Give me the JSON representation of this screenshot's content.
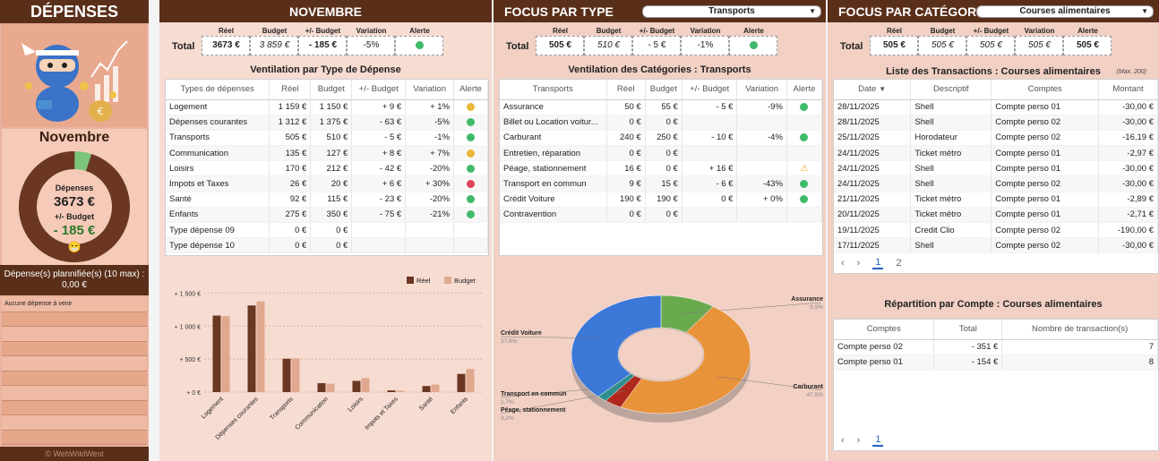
{
  "left": {
    "title": "DÉPENSES",
    "month": "Novembre",
    "donut_label": "Dépenses",
    "donut_value": "3673 €",
    "budget_label": "+/- Budget",
    "budget_value": "- 185 €",
    "emoji": "😁",
    "planned_title": "Dépense(s) plannifiée(s) (10 max) :",
    "planned_total": "0,00 €",
    "planned_first": "Aucune dépense à venir",
    "footer": "© WebWildWest",
    "spent_share": 0.95,
    "colors": {
      "spent": "#6b3722",
      "remaining": "#7cc47a"
    }
  },
  "nov": {
    "title": "NOVEMBRE",
    "total_label": "Total",
    "headers": [
      "Réel",
      "Budget",
      "+/- Budget",
      "Variation",
      "Alerte"
    ],
    "summary": [
      "3673 €",
      "3 859 €",
      "- 185 €",
      "-5%"
    ],
    "summary_alert": "green",
    "table_title": "Ventilation par Type de Dépense",
    "columns": [
      "Types de dépenses",
      "Réel",
      "Budget",
      "+/- Budget",
      "Variation",
      "Alerte"
    ],
    "rows": [
      [
        "Logement",
        "1 159 €",
        "1 150 €",
        "+ 9 €",
        "+ 1%",
        "yellow"
      ],
      [
        "Dépenses courantes",
        "1 312 €",
        "1 375 €",
        "- 63 €",
        "-5%",
        "green"
      ],
      [
        "Transports",
        "505 €",
        "510 €",
        "- 5 €",
        "-1%",
        "green"
      ],
      [
        "Communication",
        "135 €",
        "127 €",
        "+ 8 €",
        "+ 7%",
        "yellow"
      ],
      [
        "Loisirs",
        "170 €",
        "212 €",
        "- 42 €",
        "-20%",
        "green"
      ],
      [
        "Impots et Taxes",
        "26 €",
        "20 €",
        "+ 6 €",
        "+ 30%",
        "red"
      ],
      [
        "Santé",
        "92 €",
        "115 €",
        "- 23 €",
        "-20%",
        "green"
      ],
      [
        "Enfants",
        "275 €",
        "350 €",
        "- 75 €",
        "-21%",
        "green"
      ],
      [
        "Type dépense 09",
        "0 €",
        "0 €",
        "",
        "",
        ""
      ],
      [
        "Type dépense 10",
        "0 €",
        "0 €",
        "",
        "",
        ""
      ]
    ]
  },
  "chart_data": [
    {
      "type": "bar",
      "categories": [
        "Logement",
        "Dépenses courantes",
        "Transports",
        "Communication",
        "Loisirs",
        "Impots et Taxes",
        "Santé",
        "Enfants"
      ],
      "series": [
        {
          "name": "Réel",
          "values": [
            1159,
            1312,
            505,
            135,
            170,
            26,
            92,
            275
          ],
          "color": "#6b3722"
        },
        {
          "name": "Budget",
          "values": [
            1150,
            1375,
            510,
            127,
            212,
            20,
            115,
            350
          ],
          "color": "#dfa88f"
        }
      ],
      "yticks": [
        "+ 0 €",
        "+ 500 €",
        "+ 1 000 €",
        "+ 1 500 €"
      ],
      "ytick_values": [
        0,
        500,
        1000,
        1500
      ],
      "ylim": [
        0,
        1600
      ],
      "legend": "top-right"
    },
    {
      "type": "pie",
      "categories": [
        "Assurance",
        "Carburant",
        "Péage, stationnement",
        "Transport en commun",
        "Crédit Voiture"
      ],
      "values": [
        50,
        240,
        16,
        9,
        190
      ],
      "percent_labels": [
        "9,9%",
        "47,5%",
        "3,2%",
        "1,7%",
        "37,6%"
      ],
      "colors": [
        "#6aaa4e",
        "#e8923a",
        "#b0271c",
        "#2f8f8c",
        "#3c78d8"
      ]
    }
  ],
  "type_focus": {
    "title": "FOCUS PAR TYPE",
    "selected": "Transports",
    "total_label": "Total",
    "headers": [
      "Réel",
      "Budget",
      "+/- Budget",
      "Variation",
      "Alerte"
    ],
    "summary": [
      "505 €",
      "510 €",
      "- 5 €",
      "-1%"
    ],
    "summary_alert": "green",
    "table_title": "Ventilation des Catégories : Transports",
    "columns": [
      "Transports",
      "Réel",
      "Budget",
      "+/- Budget",
      "Variation",
      "Alerte"
    ],
    "rows": [
      [
        "Assurance",
        "50 €",
        "55 €",
        "- 5 €",
        "-9%",
        "green"
      ],
      [
        "Billet ou Location voitur...",
        "0 €",
        "0 €",
        "",
        "",
        ""
      ],
      [
        "Carburant",
        "240 €",
        "250 €",
        "- 10 €",
        "-4%",
        "green"
      ],
      [
        "Entretien, réparation",
        "0 €",
        "0 €",
        "",
        "",
        ""
      ],
      [
        "Péage, stationnement",
        "16 €",
        "0 €",
        "+ 16 €",
        "",
        "warn"
      ],
      [
        "Transport en commun",
        "9 €",
        "15 €",
        "- 6 €",
        "-43%",
        "green"
      ],
      [
        "Crédit Voiture",
        "190 €",
        "190 €",
        "0 €",
        "+ 0%",
        "green"
      ],
      [
        "Contravention",
        "0 €",
        "0 €",
        "",
        "",
        ""
      ]
    ]
  },
  "cat_focus": {
    "title": "FOCUS PAR CATÉGORIE",
    "selected": "Courses alimentaires",
    "total_label": "Total",
    "headers": [
      "Réel",
      "Budget",
      "+/- Budget",
      "Variation",
      "Alerte"
    ],
    "summary": [
      "505 €",
      "505 €",
      "505 €",
      "505 €",
      "505 €"
    ],
    "tx_title": "Liste des Transactions : Courses alimentaires",
    "tx_max": "(Max. 200)",
    "tx_columns": [
      "Date",
      "Descriptif",
      "Comptes",
      "Montant"
    ],
    "transactions": [
      [
        "28/11/2025",
        "Shell",
        "Compte perso 01",
        "-30,00 €"
      ],
      [
        "28/11/2025",
        "Shell",
        "Compte perso 02",
        "-30,00 €"
      ],
      [
        "25/11/2025",
        "Horodateur",
        "Compte perso 02",
        "-16,19 €"
      ],
      [
        "24/11/2025",
        "Ticket métro",
        "Compte perso 01",
        "-2,97 €"
      ],
      [
        "24/11/2025",
        "Shell",
        "Compte perso 01",
        "-30,00 €"
      ],
      [
        "24/11/2025",
        "Shell",
        "Compte perso 02",
        "-30,00 €"
      ],
      [
        "21/11/2025",
        "Ticket métro",
        "Compte perso 01",
        "-2,89 €"
      ],
      [
        "20/11/2025",
        "Ticket métro",
        "Compte perso 01",
        "-2,71 €"
      ],
      [
        "19/11/2025",
        "Credit Clio",
        "Compte perso 02",
        "-190,00 €"
      ],
      [
        "17/11/2025",
        "Shell",
        "Compte perso 02",
        "-30,00 €"
      ]
    ],
    "tx_pages": [
      "1",
      "2"
    ],
    "repart_title": "Répartition par Compte : Courses alimentaires",
    "repart_columns": [
      "Comptes",
      "Total",
      "Nombre de transaction(s)"
    ],
    "repart_rows": [
      [
        "Compte perso 02",
        "- 351 €",
        "7"
      ],
      [
        "Compte perso 01",
        "- 154 €",
        "8"
      ]
    ],
    "repart_pages": [
      "1"
    ]
  }
}
